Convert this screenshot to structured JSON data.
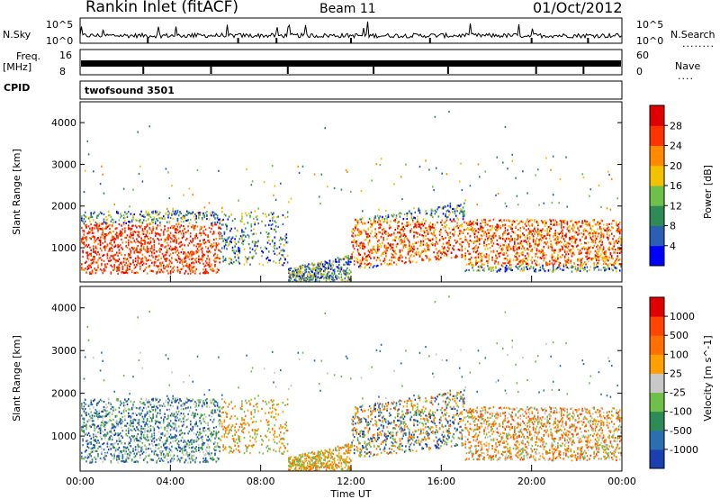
{
  "header": {
    "station": "Rankin Inlet (fitACF)",
    "beam": "Beam 11",
    "date": "01/Oct/2012"
  },
  "noise_panel": {
    "left_label": "N.Sky",
    "right_label": "N.Search",
    "right_dots": "........",
    "left_ticks": [
      "10^5",
      "10^0"
    ],
    "right_ticks": [
      "10^5",
      "10^0"
    ]
  },
  "freq_panel": {
    "left_label_1": "Freq.",
    "left_label_2": "[MHz]",
    "left_ticks": [
      "16",
      "8"
    ],
    "right_label": "Nave",
    "right_dots": "....",
    "right_ticks": [
      "60",
      "0"
    ]
  },
  "cpid": {
    "label": "CPID",
    "value": "twofsound 3501"
  },
  "colors": {
    "axis": "#000000",
    "trace": "#000000"
  },
  "chart_data": [
    {
      "type": "heatmap",
      "parameter": "power",
      "ylabel": "Slant Range [km]",
      "xlabel": "",
      "ylim": [
        180,
        4500
      ],
      "yticks": [
        "1000",
        "2000",
        "3000",
        "4000"
      ],
      "colorbar": {
        "label": "Power [dB]",
        "ticks": [
          "28",
          "24",
          "20",
          "16",
          "12",
          "8",
          "4"
        ],
        "colors": [
          "#0000ff",
          "#2a5fb4",
          "#2e8b57",
          "#6fbf4a",
          "#f2c200",
          "#ff8a00",
          "#ff3300",
          "#e00000"
        ]
      }
    },
    {
      "type": "heatmap",
      "parameter": "velocity",
      "ylabel": "Slant Range [km]",
      "xlabel": "Time UT",
      "ylim": [
        180,
        4500
      ],
      "yticks": [
        "1000",
        "2000",
        "3000",
        "4000"
      ],
      "xticks": [
        "00:00",
        "04:00",
        "08:00",
        "12:00",
        "16:00",
        "20:00",
        "00:00"
      ],
      "colorbar": {
        "label": "Velocity [m s^-1]",
        "ticks": [
          "1000",
          "500",
          "100",
          "25",
          "-25",
          "-100",
          "-500",
          "-1000"
        ],
        "colors": [
          "#1a3fb0",
          "#2a6fb0",
          "#2e8b57",
          "#6fbf4a",
          "#c8c8c8",
          "#ffa000",
          "#ff7000",
          "#ff4500",
          "#e00000"
        ]
      }
    }
  ]
}
